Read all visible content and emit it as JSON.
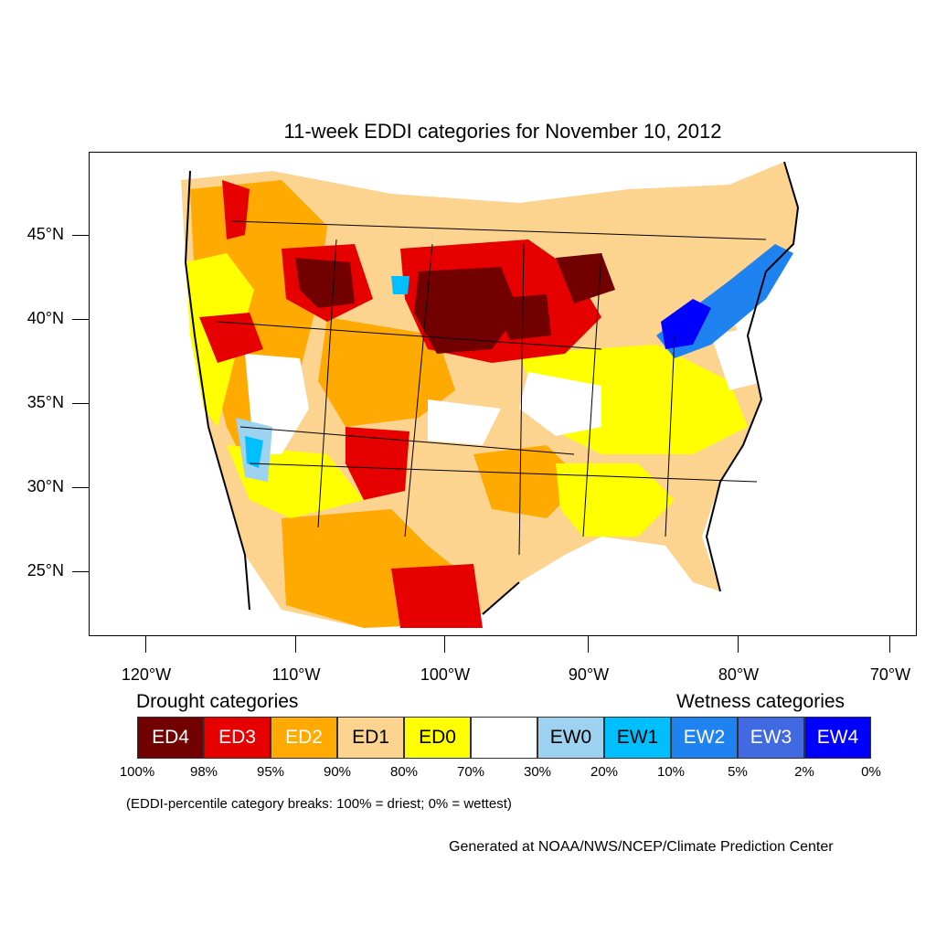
{
  "title": "11-week EDDI categories for November 10, 2012",
  "latitude_labels": [
    "45°N",
    "40°N",
    "35°N",
    "30°N",
    "25°N"
  ],
  "longitude_labels": [
    "120°W",
    "110°W",
    "100°W",
    "90°W",
    "80°W",
    "70°W"
  ],
  "legend": {
    "drought_heading": "Drought categories",
    "wetness_heading": "Wetness categories",
    "categories": [
      {
        "label": "ED4",
        "color": "#730000",
        "text_color": "#ffffff"
      },
      {
        "label": "ED3",
        "color": "#e60000",
        "text_color": "#ffffff"
      },
      {
        "label": "ED2",
        "color": "#ffaa00",
        "text_color": "#ffffff"
      },
      {
        "label": "ED1",
        "color": "#fcd38f",
        "text_color": "#000000"
      },
      {
        "label": "ED0",
        "color": "#ffff00",
        "text_color": "#000000"
      },
      {
        "label": "",
        "color": "#ffffff",
        "text_color": "#000000"
      },
      {
        "label": "EW0",
        "color": "#9dd3f0",
        "text_color": "#000000"
      },
      {
        "label": "EW1",
        "color": "#00bfff",
        "text_color": "#000000"
      },
      {
        "label": "EW2",
        "color": "#1e82f0",
        "text_color": "#ffffff"
      },
      {
        "label": "EW3",
        "color": "#4169e1",
        "text_color": "#ffffff"
      },
      {
        "label": "EW4",
        "color": "#0000ff",
        "text_color": "#ffffff"
      }
    ],
    "percentile_breaks": [
      "100%",
      "98%",
      "95%",
      "90%",
      "80%",
      "70%",
      "30%",
      "20%",
      "10%",
      "5%",
      "2%",
      "0%"
    ]
  },
  "note": "(EDDI-percentile category breaks: 100% = driest; 0% = wettest)",
  "credit": "Generated at NOAA/NWS/NCEP/Climate Prediction Center"
}
